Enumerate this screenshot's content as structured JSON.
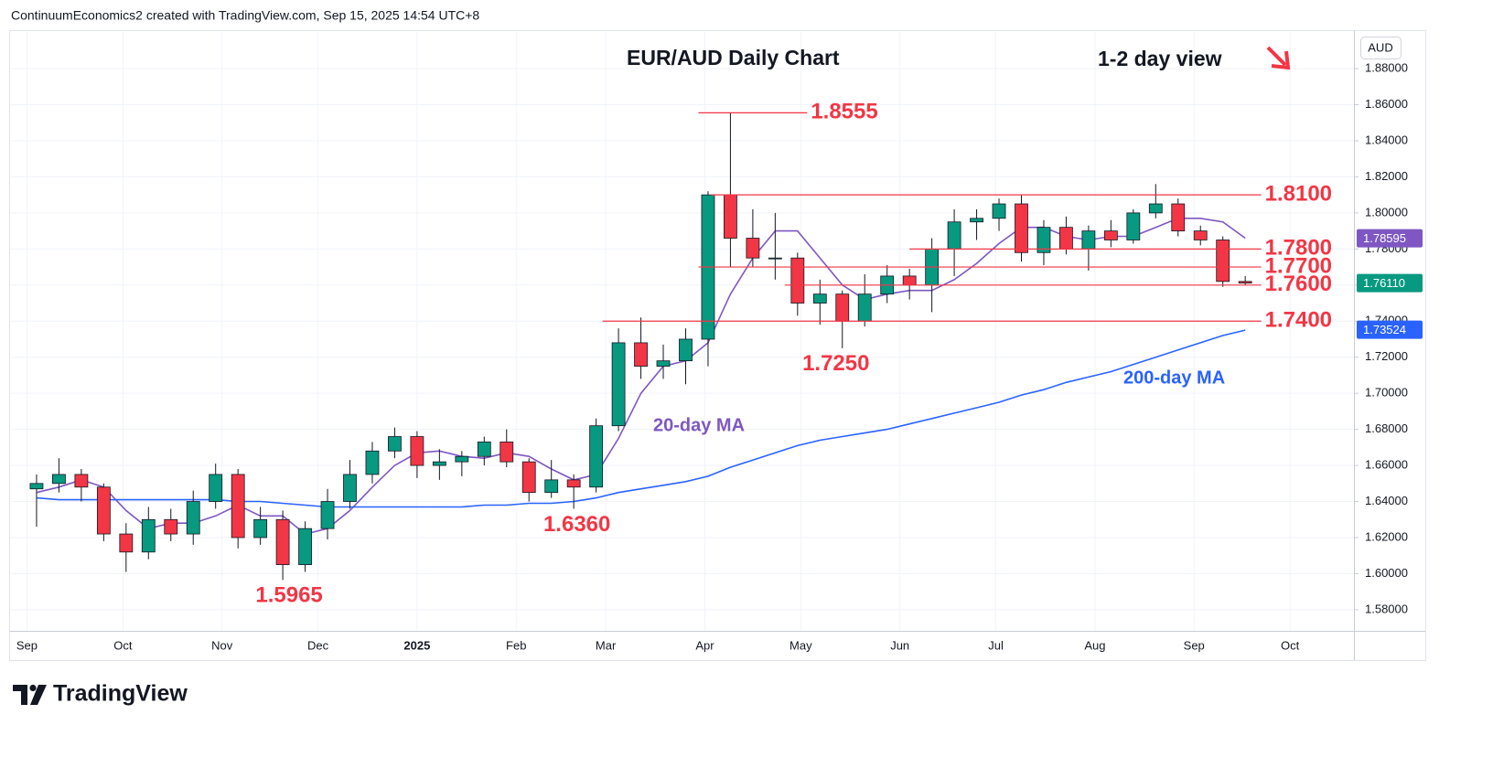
{
  "header": "ContinuumEconomics2 created with TradingView.com, Sep 15, 2025 14:54 UTC+8",
  "logo": "TradingView",
  "chart_data": {
    "type": "candlestick",
    "title": "EUR/AUD Daily Chart",
    "subtitle": "1-2 day view",
    "currency": "AUD",
    "grid": true,
    "xlim": [
      "2024-08-27",
      "2025-10-21"
    ],
    "ylim": [
      1.5683,
      1.9003
    ],
    "xticks": [
      {
        "value": "2024-09-01",
        "label": "Sep"
      },
      {
        "value": "2024-10-01",
        "label": "Oct"
      },
      {
        "value": "2024-11-01",
        "label": "Nov"
      },
      {
        "value": "2024-12-01",
        "label": "Dec"
      },
      {
        "value": "2025-01-01",
        "label": "2025"
      },
      {
        "value": "2025-02-01",
        "label": "Feb"
      },
      {
        "value": "2025-03-01",
        "label": "Mar"
      },
      {
        "value": "2025-04-01",
        "label": "Apr"
      },
      {
        "value": "2025-05-01",
        "label": "May"
      },
      {
        "value": "2025-06-01",
        "label": "Jun"
      },
      {
        "value": "2025-07-01",
        "label": "Jul"
      },
      {
        "value": "2025-08-01",
        "label": "Aug"
      },
      {
        "value": "2025-09-01",
        "label": "Sep"
      },
      {
        "value": "2025-10-01",
        "label": "Oct"
      }
    ],
    "yticks": [
      {
        "value": 1.58,
        "label": "1.58000"
      },
      {
        "value": 1.6,
        "label": "1.60000"
      },
      {
        "value": 1.62,
        "label": "1.62000"
      },
      {
        "value": 1.64,
        "label": "1.64000"
      },
      {
        "value": 1.66,
        "label": "1.66000"
      },
      {
        "value": 1.68,
        "label": "1.68000"
      },
      {
        "value": 1.7,
        "label": "1.70000"
      },
      {
        "value": 1.72,
        "label": "1.72000"
      },
      {
        "value": 1.74,
        "label": "1.74000"
      },
      {
        "value": 1.76,
        "label": "1.76000"
      },
      {
        "value": 1.78,
        "label": "1.78000"
      },
      {
        "value": 1.8,
        "label": "1.80000"
      },
      {
        "value": 1.82,
        "label": "1.82000"
      },
      {
        "value": 1.84,
        "label": "1.84000"
      },
      {
        "value": 1.86,
        "label": "1.86000"
      },
      {
        "value": 1.88,
        "label": "1.88000"
      }
    ],
    "x": [
      "2024-09-02",
      "2024-09-09",
      "2024-09-16",
      "2024-09-23",
      "2024-09-30",
      "2024-10-07",
      "2024-10-14",
      "2024-10-21",
      "2024-10-28",
      "2024-11-04",
      "2024-11-11",
      "2024-11-18",
      "2024-11-25",
      "2024-12-02",
      "2024-12-09",
      "2024-12-16",
      "2024-12-23",
      "2024-12-30",
      "2025-01-06",
      "2025-01-13",
      "2025-01-20",
      "2025-01-27",
      "2025-02-03",
      "2025-02-10",
      "2025-02-17",
      "2025-02-24",
      "2025-03-03",
      "2025-03-10",
      "2025-03-17",
      "2025-03-24",
      "2025-03-31",
      "2025-04-07",
      "2025-04-14",
      "2025-04-21",
      "2025-04-28",
      "2025-05-05",
      "2025-05-12",
      "2025-05-19",
      "2025-05-26",
      "2025-06-02",
      "2025-06-09",
      "2025-06-16",
      "2025-06-23",
      "2025-06-30",
      "2025-07-07",
      "2025-07-14",
      "2025-07-21",
      "2025-07-28",
      "2025-08-04",
      "2025-08-11",
      "2025-08-18",
      "2025-08-25",
      "2025-09-01",
      "2025-09-08",
      "2025-09-15"
    ],
    "up_color": "#089981",
    "down_color": "#f23645",
    "open": [
      1.647,
      1.65,
      1.655,
      1.648,
      1.622,
      1.612,
      1.63,
      1.622,
      1.64,
      1.655,
      1.62,
      1.63,
      1.605,
      1.625,
      1.64,
      1.655,
      1.668,
      1.676,
      1.66,
      1.662,
      1.665,
      1.673,
      1.662,
      1.645,
      1.652,
      1.648,
      1.682,
      1.728,
      1.715,
      1.718,
      1.73,
      1.81,
      1.786,
      1.775,
      1.775,
      1.75,
      1.755,
      1.74,
      1.755,
      1.765,
      1.76,
      1.78,
      1.795,
      1.797,
      1.805,
      1.778,
      1.792,
      1.78,
      1.79,
      1.785,
      1.8,
      1.805,
      1.79,
      1.785,
      1.762
    ],
    "high": [
      1.655,
      1.664,
      1.658,
      1.65,
      1.628,
      1.637,
      1.636,
      1.646,
      1.661,
      1.658,
      1.637,
      1.635,
      1.629,
      1.647,
      1.663,
      1.673,
      1.681,
      1.679,
      1.669,
      1.668,
      1.676,
      1.68,
      1.664,
      1.663,
      1.655,
      1.686,
      1.736,
      1.742,
      1.727,
      1.736,
      1.812,
      1.8555,
      1.802,
      1.8,
      1.778,
      1.763,
      1.757,
      1.766,
      1.771,
      1.769,
      1.786,
      1.802,
      1.802,
      1.808,
      1.81,
      1.796,
      1.798,
      1.793,
      1.796,
      1.802,
      1.816,
      1.808,
      1.793,
      1.787,
      1.765
    ],
    "low": [
      1.626,
      1.645,
      1.64,
      1.618,
      1.601,
      1.608,
      1.618,
      1.616,
      1.636,
      1.614,
      1.616,
      1.5965,
      1.601,
      1.619,
      1.636,
      1.65,
      1.664,
      1.653,
      1.652,
      1.654,
      1.66,
      1.659,
      1.64,
      1.642,
      1.636,
      1.645,
      1.679,
      1.708,
      1.708,
      1.705,
      1.715,
      1.77,
      1.77,
      1.763,
      1.743,
      1.738,
      1.725,
      1.737,
      1.75,
      1.752,
      1.745,
      1.765,
      1.785,
      1.79,
      1.773,
      1.771,
      1.777,
      1.768,
      1.781,
      1.783,
      1.797,
      1.787,
      1.782,
      1.759,
      1.76
    ],
    "close": [
      1.65,
      1.655,
      1.648,
      1.622,
      1.612,
      1.63,
      1.622,
      1.64,
      1.655,
      1.62,
      1.63,
      1.605,
      1.625,
      1.64,
      1.655,
      1.668,
      1.676,
      1.66,
      1.662,
      1.665,
      1.673,
      1.662,
      1.645,
      1.652,
      1.648,
      1.682,
      1.728,
      1.715,
      1.718,
      1.73,
      1.81,
      1.786,
      1.775,
      1.775,
      1.75,
      1.755,
      1.74,
      1.755,
      1.765,
      1.76,
      1.78,
      1.795,
      1.797,
      1.805,
      1.778,
      1.792,
      1.78,
      1.79,
      1.785,
      1.8,
      1.805,
      1.79,
      1.785,
      1.762,
      1.7611
    ],
    "price_tag": {
      "value": 1.7611,
      "label": "1.76110",
      "color": "#089981"
    },
    "moving_averages": [
      {
        "name": "20-day MA",
        "color": "#7e57c2",
        "values": [
          1.645,
          1.648,
          1.652,
          1.648,
          1.635,
          1.625,
          1.628,
          1.628,
          1.632,
          1.638,
          1.632,
          1.632,
          1.622,
          1.625,
          1.635,
          1.648,
          1.66,
          1.667,
          1.668,
          1.665,
          1.664,
          1.667,
          1.665,
          1.658,
          1.652,
          1.655,
          1.675,
          1.7,
          1.715,
          1.718,
          1.728,
          1.755,
          1.775,
          1.79,
          1.79,
          1.775,
          1.76,
          1.752,
          1.755,
          1.757,
          1.757,
          1.763,
          1.772,
          1.783,
          1.792,
          1.792,
          1.787,
          1.785,
          1.787,
          1.787,
          1.792,
          1.797,
          1.797,
          1.795,
          1.786
        ],
        "last": {
          "value": 1.78595,
          "label": "1.78595"
        }
      },
      {
        "name": "200-day MA",
        "color": "#2962ff",
        "values": [
          1.642,
          1.641,
          1.641,
          1.641,
          1.641,
          1.641,
          1.641,
          1.641,
          1.641,
          1.64,
          1.64,
          1.639,
          1.638,
          1.637,
          1.637,
          1.637,
          1.637,
          1.637,
          1.637,
          1.637,
          1.638,
          1.638,
          1.639,
          1.639,
          1.64,
          1.642,
          1.645,
          1.647,
          1.649,
          1.651,
          1.654,
          1.659,
          1.663,
          1.667,
          1.671,
          1.674,
          1.676,
          1.678,
          1.68,
          1.683,
          1.686,
          1.689,
          1.692,
          1.695,
          1.699,
          1.702,
          1.706,
          1.709,
          1.712,
          1.716,
          1.72,
          1.724,
          1.728,
          1.732,
          1.735
        ],
        "last": {
          "value": 1.73524,
          "label": "1.73524"
        }
      }
    ],
    "levels": [
      {
        "value": 1.8555,
        "label": "1.8555",
        "start": "2025-03-30",
        "end": "2025-05-03"
      },
      {
        "value": 1.81,
        "label": "1.8100",
        "start": "2025-04-03",
        "end": "2025-09-22"
      },
      {
        "value": 1.78,
        "label": "1.7800",
        "start": "2025-06-04",
        "end": "2025-09-22"
      },
      {
        "value": 1.77,
        "label": "1.7700",
        "start": "2025-03-30",
        "end": "2025-09-22"
      },
      {
        "value": 1.76,
        "label": "1.7600",
        "start": "2025-04-26",
        "end": "2025-09-22"
      },
      {
        "value": 1.74,
        "label": "1.7400",
        "start": "2025-02-28",
        "end": "2025-09-22"
      }
    ],
    "level_color": "#f23645",
    "annotations": [
      {
        "text": "1.5965",
        "date": "2024-11-22",
        "value": 1.5965
      },
      {
        "text": "1.6360",
        "date": "2025-02-20",
        "value": 1.636
      },
      {
        "text": "1.7250",
        "date": "2025-05-12",
        "value": 1.725
      }
    ]
  }
}
